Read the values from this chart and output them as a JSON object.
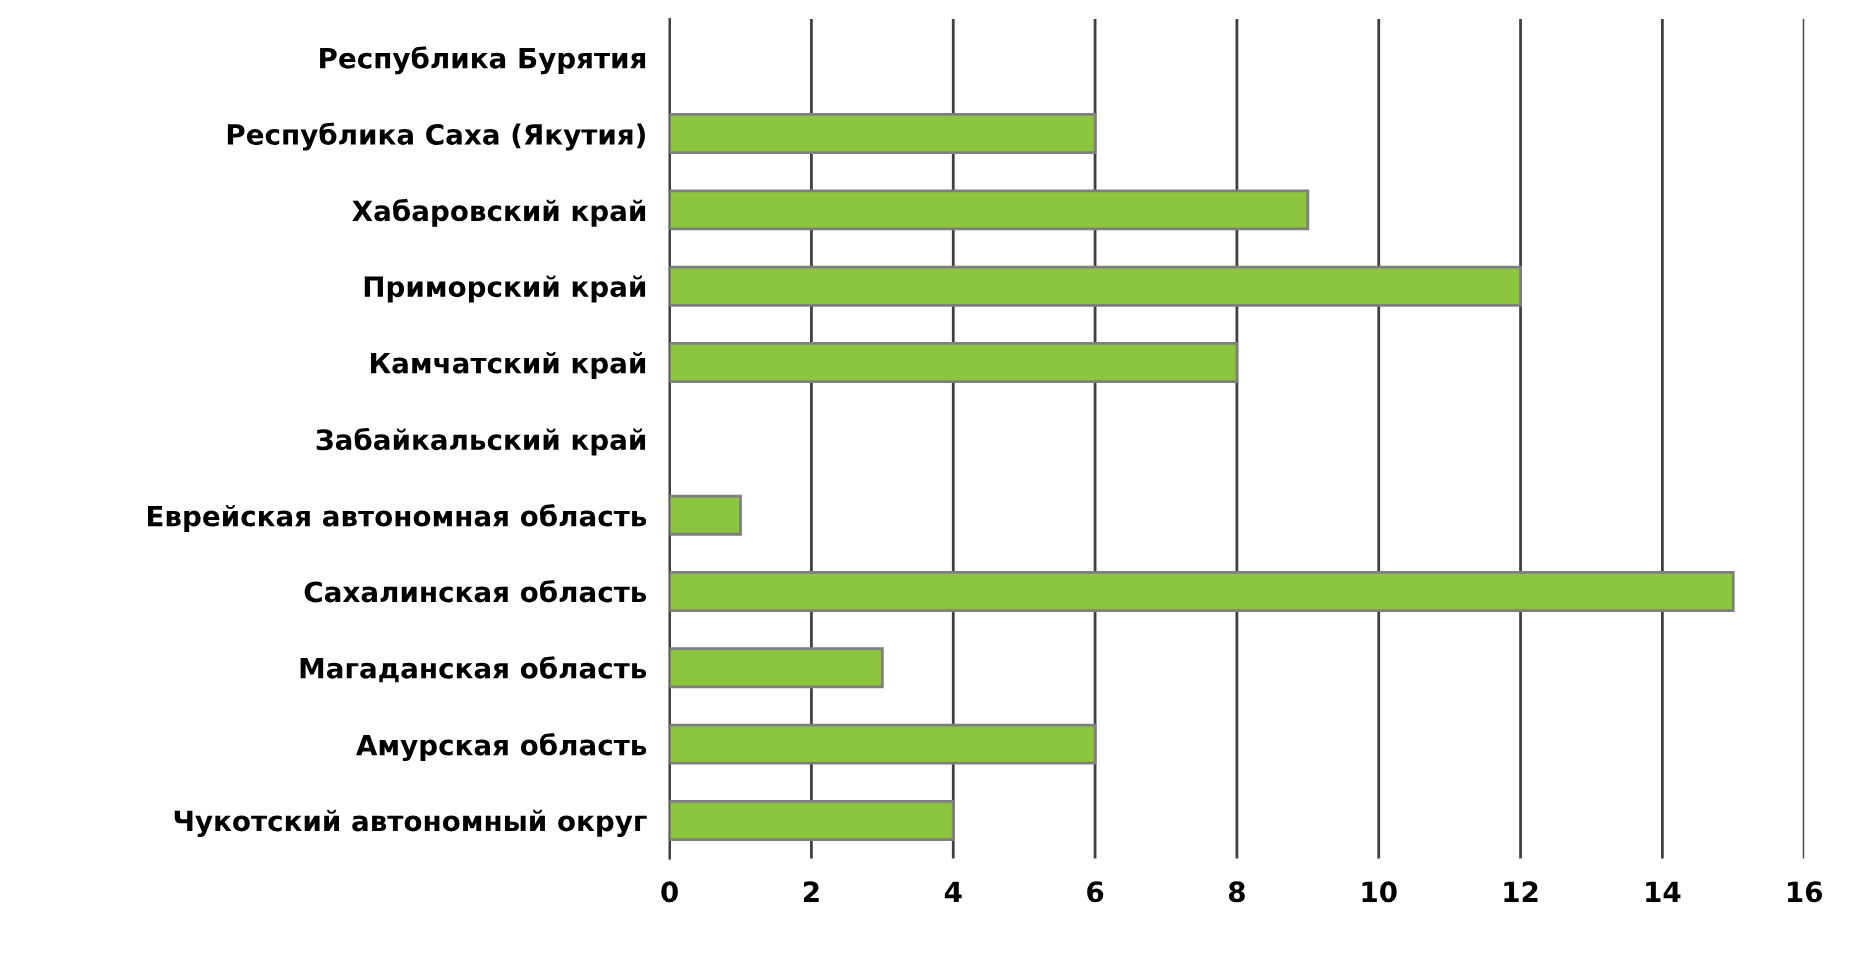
{
  "chart_data": {
    "type": "bar",
    "orientation": "horizontal",
    "categories": [
      "Республика Бурятия",
      "Республика Саха (Якутия)",
      "Хабаровский край",
      "Приморский край",
      "Камчатский край",
      "Забайкальский край",
      "Еврейская автономная область",
      "Сахалинская область",
      "Магаданская область",
      "Амурская область",
      "Чукотский автономный округ"
    ],
    "values": [
      0,
      6,
      9,
      12,
      8,
      0,
      1,
      15,
      3,
      6,
      4
    ],
    "color": "#8cc63e",
    "xlim": [
      0,
      16
    ],
    "xticks": [
      0,
      2,
      4,
      6,
      8,
      10,
      12,
      14,
      16
    ],
    "grid": "x"
  }
}
